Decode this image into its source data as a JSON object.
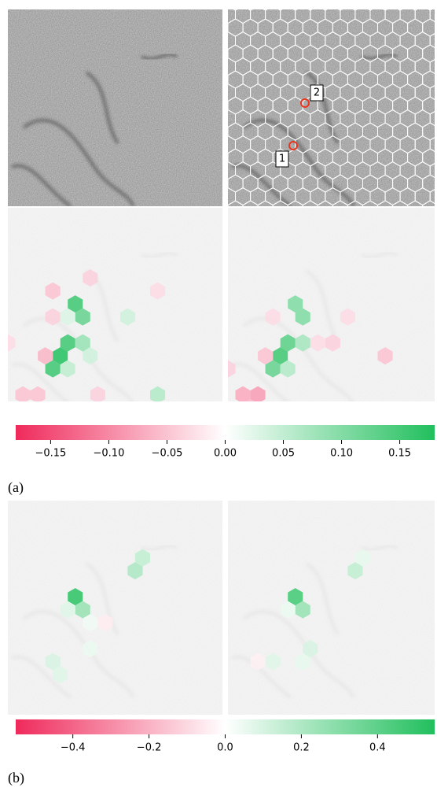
{
  "figure": {
    "colors": {
      "negative": "#ef2a5b",
      "zero": "#ffffff",
      "positive": "#21bf5d"
    },
    "panel_a": {
      "label": "(a)",
      "markers": [
        "1",
        "2"
      ],
      "colorbar": {
        "lim": [
          -0.18,
          0.18
        ],
        "ticks": [
          {
            "value": -0.15,
            "label": "−0.15"
          },
          {
            "value": -0.1,
            "label": "−0.10"
          },
          {
            "value": -0.05,
            "label": "−0.05"
          },
          {
            "value": 0,
            "label": "0.00"
          },
          0.05,
          {
            "value": 0.1,
            "label": "0.10"
          },
          0.15
        ]
      },
      "left_cells": [
        [
          4,
          7,
          0.15
        ],
        [
          5,
          8,
          0.12
        ],
        [
          4,
          10,
          0.15
        ],
        [
          3,
          11,
          0.17
        ],
        [
          3,
          12,
          0.15
        ],
        [
          5,
          10,
          0.08
        ],
        [
          4,
          12,
          0.05
        ],
        [
          5,
          11,
          0.04
        ],
        [
          3,
          6,
          -0.05
        ],
        [
          5,
          5,
          -0.04
        ],
        [
          3,
          8,
          -0.04
        ],
        [
          2,
          11,
          -0.06
        ],
        [
          1,
          14,
          -0.05
        ],
        [
          6,
          14,
          -0.04
        ],
        [
          10,
          14,
          0.06
        ],
        [
          8,
          8,
          0.04
        ],
        [
          10,
          6,
          -0.03
        ],
        [
          0,
          10,
          -0.03
        ],
        [
          2,
          14,
          -0.05
        ],
        [
          4,
          8,
          0.03
        ]
      ],
      "right_cells": [
        [
          4,
          7,
          0.1
        ],
        [
          5,
          8,
          0.1
        ],
        [
          4,
          10,
          0.13
        ],
        [
          3,
          11,
          0.15
        ],
        [
          3,
          12,
          0.12
        ],
        [
          5,
          10,
          0.07
        ],
        [
          4,
          12,
          0.06
        ],
        [
          1,
          14,
          -0.07
        ],
        [
          1,
          15,
          -0.06
        ],
        [
          2,
          14,
          -0.08
        ],
        [
          2,
          11,
          -0.05
        ],
        [
          0,
          12,
          -0.04
        ],
        [
          7,
          10,
          -0.04
        ],
        [
          6,
          10,
          -0.03
        ],
        [
          10,
          11,
          -0.05
        ],
        [
          8,
          8,
          -0.03
        ],
        [
          3,
          8,
          -0.03
        ]
      ]
    },
    "panel_b": {
      "label": "(b)",
      "colorbar": {
        "lim": [
          -0.55,
          0.55
        ],
        "ticks": [
          {
            "value": -0.4,
            "label": "−0.4"
          },
          {
            "value": -0.2,
            "label": "−0.2"
          },
          {
            "value": 0,
            "label": "0.0"
          },
          0.2,
          0.4
        ]
      },
      "left_cells": [
        [
          4,
          7,
          0.5
        ],
        [
          5,
          8,
          0.25
        ],
        [
          8,
          5,
          0.2
        ],
        [
          9,
          4,
          0.15
        ],
        [
          4,
          8,
          0.08
        ],
        [
          3,
          12,
          0.1
        ],
        [
          3,
          13,
          0.08
        ],
        [
          5,
          11,
          0.05
        ],
        [
          6,
          9,
          -0.05
        ],
        [
          5,
          9,
          0.04
        ]
      ],
      "right_cells": [
        [
          4,
          7,
          0.45
        ],
        [
          5,
          8,
          0.25
        ],
        [
          8,
          5,
          0.15
        ],
        [
          9,
          4,
          0.06
        ],
        [
          3,
          12,
          0.08
        ],
        [
          5,
          11,
          0.1
        ],
        [
          5,
          12,
          0.06
        ],
        [
          2,
          12,
          -0.04
        ],
        [
          4,
          8,
          0.05
        ]
      ]
    }
  }
}
